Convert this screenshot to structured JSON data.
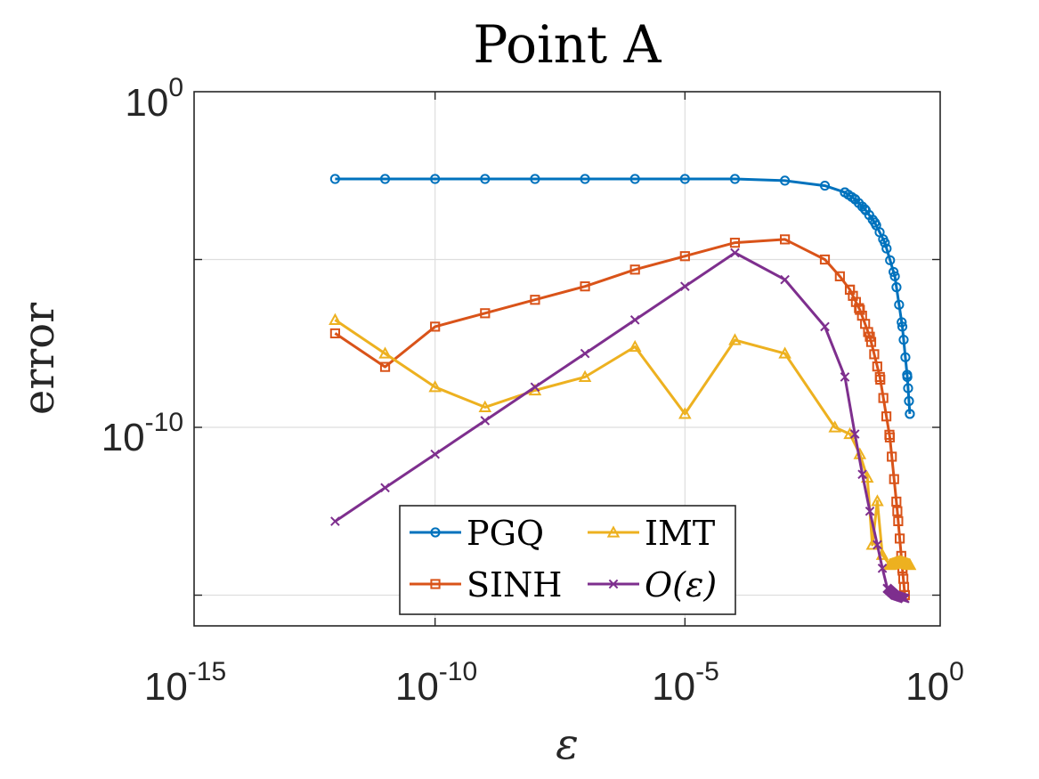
{
  "chart_data": {
    "type": "line",
    "title": "Point A",
    "xlabel": "ε",
    "ylabel": "error",
    "xscale": "log",
    "yscale": "log",
    "xlim_exp": [
      -15,
      0
    ],
    "ylim_exp": [
      -16,
      0
    ],
    "x_ticks": [
      {
        "base": "10",
        "exp": "-15"
      },
      {
        "base": "10",
        "exp": "-10"
      },
      {
        "base": "10",
        "exp": "-5"
      },
      {
        "base": "10",
        "exp": "0"
      }
    ],
    "y_ticks": [
      {
        "base": "10",
        "exp": "0",
        "value_exp": 0
      },
      {
        "base": "10",
        "exp": "-10",
        "value_exp": -10
      }
    ],
    "grid": true,
    "legend_location": "lower-center",
    "series": [
      {
        "name": "PGQ",
        "label": "PGQ",
        "color": "#0072BD",
        "marker": "circle",
        "dense_x_exp": [
          -2.0,
          -0.5
        ],
        "dense_y_exp": [
          -3.8,
          -9.6
        ],
        "points": [
          {
            "x_exp": -12,
            "y_exp": -2.6
          },
          {
            "x_exp": -11,
            "y_exp": -2.6
          },
          {
            "x_exp": -10,
            "y_exp": -2.6
          },
          {
            "x_exp": -9,
            "y_exp": -2.6
          },
          {
            "x_exp": -8,
            "y_exp": -2.6
          },
          {
            "x_exp": -7,
            "y_exp": -2.6
          },
          {
            "x_exp": -6,
            "y_exp": -2.6
          },
          {
            "x_exp": -5,
            "y_exp": -2.6
          },
          {
            "x_exp": -4,
            "y_exp": -2.6
          },
          {
            "x_exp": -3,
            "y_exp": -2.65
          },
          {
            "x_exp": -2.2,
            "y_exp": -2.8
          },
          {
            "x_exp": -1.8,
            "y_exp": -3.0
          },
          {
            "x_exp": -1.6,
            "y_exp": -3.2
          },
          {
            "x_exp": -1.4,
            "y_exp": -3.5
          },
          {
            "x_exp": -1.2,
            "y_exp": -3.9
          },
          {
            "x_exp": -1.0,
            "y_exp": -4.5
          },
          {
            "x_exp": -0.8,
            "y_exp": -5.5
          },
          {
            "x_exp": -0.65,
            "y_exp": -7.0
          },
          {
            "x_exp": -0.55,
            "y_exp": -8.5
          },
          {
            "x_exp": -0.5,
            "y_exp": -9.6
          }
        ]
      },
      {
        "name": "SINH",
        "label": "SINH",
        "color": "#D95319",
        "marker": "square",
        "dense_x_exp": [
          -1.8,
          -0.6
        ],
        "dense_y_exp": [
          -6.4,
          -15.0
        ],
        "points": [
          {
            "x_exp": -12,
            "y_exp": -7.2
          },
          {
            "x_exp": -11,
            "y_exp": -8.2
          },
          {
            "x_exp": -10,
            "y_exp": -7.0
          },
          {
            "x_exp": -9,
            "y_exp": -6.6
          },
          {
            "x_exp": -8,
            "y_exp": -6.2
          },
          {
            "x_exp": -7,
            "y_exp": -5.8
          },
          {
            "x_exp": -6,
            "y_exp": -5.3
          },
          {
            "x_exp": -5,
            "y_exp": -4.9
          },
          {
            "x_exp": -4,
            "y_exp": -4.5
          },
          {
            "x_exp": -3,
            "y_exp": -4.4
          },
          {
            "x_exp": -2.2,
            "y_exp": -5.0
          },
          {
            "x_exp": -1.9,
            "y_exp": -5.5
          },
          {
            "x_exp": -1.7,
            "y_exp": -5.9
          },
          {
            "x_exp": -1.5,
            "y_exp": -6.5
          },
          {
            "x_exp": -1.3,
            "y_exp": -7.3
          },
          {
            "x_exp": -1.1,
            "y_exp": -8.5
          },
          {
            "x_exp": -0.9,
            "y_exp": -10.3
          },
          {
            "x_exp": -0.75,
            "y_exp": -12.5
          },
          {
            "x_exp": -0.65,
            "y_exp": -14.2
          },
          {
            "x_exp": -0.6,
            "y_exp": -15.0
          }
        ]
      },
      {
        "name": "IMT",
        "label": "IMT",
        "color": "#EDB120",
        "marker": "triangle",
        "dense_x_exp": [
          -1.0,
          -0.5
        ],
        "dense_y_exp": [
          -13.8,
          -14.1
        ],
        "points": [
          {
            "x_exp": -12,
            "y_exp": -6.8
          },
          {
            "x_exp": -11,
            "y_exp": -7.8
          },
          {
            "x_exp": -10,
            "y_exp": -8.8
          },
          {
            "x_exp": -9,
            "y_exp": -9.4
          },
          {
            "x_exp": -8,
            "y_exp": -8.9
          },
          {
            "x_exp": -7,
            "y_exp": -8.5
          },
          {
            "x_exp": -6,
            "y_exp": -7.6
          },
          {
            "x_exp": -5,
            "y_exp": -9.6
          },
          {
            "x_exp": -4,
            "y_exp": -7.4
          },
          {
            "x_exp": -3,
            "y_exp": -7.8
          },
          {
            "x_exp": -2.0,
            "y_exp": -10.0
          },
          {
            "x_exp": -1.7,
            "y_exp": -10.2
          },
          {
            "x_exp": -1.5,
            "y_exp": -10.8
          },
          {
            "x_exp": -1.35,
            "y_exp": -11.5
          },
          {
            "x_exp": -1.25,
            "y_exp": -13.5
          },
          {
            "x_exp": -1.15,
            "y_exp": -12.2
          },
          {
            "x_exp": -1.05,
            "y_exp": -13.8
          },
          {
            "x_exp": -0.9,
            "y_exp": -14.1
          },
          {
            "x_exp": -0.7,
            "y_exp": -14.0
          },
          {
            "x_exp": -0.5,
            "y_exp": -14.1
          }
        ]
      },
      {
        "name": "O(ε)",
        "label": "O(ε)",
        "color": "#7E2F8E",
        "marker": "x",
        "dense_x_exp": [
          -1.0,
          -0.6
        ],
        "dense_y_exp": [
          -14.6,
          -15.1
        ],
        "points": [
          {
            "x_exp": -12,
            "y_exp": -12.8
          },
          {
            "x_exp": -11,
            "y_exp": -11.8
          },
          {
            "x_exp": -10,
            "y_exp": -10.8
          },
          {
            "x_exp": -9,
            "y_exp": -9.8
          },
          {
            "x_exp": -8,
            "y_exp": -8.8
          },
          {
            "x_exp": -7,
            "y_exp": -7.8
          },
          {
            "x_exp": -6,
            "y_exp": -6.8
          },
          {
            "x_exp": -5,
            "y_exp": -5.8
          },
          {
            "x_exp": -4,
            "y_exp": -4.8
          },
          {
            "x_exp": -3,
            "y_exp": -5.6
          },
          {
            "x_exp": -2.2,
            "y_exp": -7.0
          },
          {
            "x_exp": -1.8,
            "y_exp": -8.5
          },
          {
            "x_exp": -1.6,
            "y_exp": -10.2
          },
          {
            "x_exp": -1.45,
            "y_exp": -11.4
          },
          {
            "x_exp": -1.3,
            "y_exp": -12.5
          },
          {
            "x_exp": -1.15,
            "y_exp": -13.5
          },
          {
            "x_exp": -1.05,
            "y_exp": -14.2
          },
          {
            "x_exp": -0.95,
            "y_exp": -14.8
          },
          {
            "x_exp": -0.8,
            "y_exp": -15.0
          },
          {
            "x_exp": -0.6,
            "y_exp": -15.1
          }
        ]
      }
    ]
  }
}
